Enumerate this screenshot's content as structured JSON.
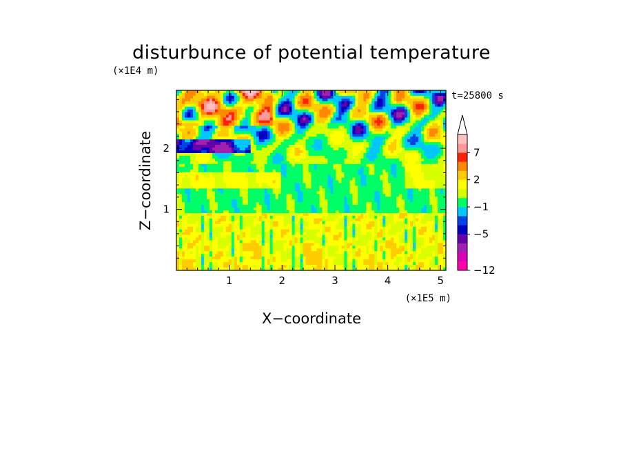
{
  "chart_data": {
    "type": "heatmap",
    "title": "disturbunce of potential temperature",
    "time_label": "t=25800 s",
    "xlabel": "X−coordinate",
    "ylabel": "Z−coordinate",
    "x_unit": "(×1E5 m)",
    "y_unit": "(×1E4 m)",
    "xlim": [
      0,
      5.1
    ],
    "ylim": [
      0,
      2.95
    ],
    "x_ticks": [
      "1",
      "2",
      "3",
      "4",
      "5"
    ],
    "y_ticks": [
      "1",
      "2"
    ],
    "colorbar": {
      "ticks": [
        "7",
        "2",
        "−1",
        "−5",
        "−12"
      ],
      "levels": [
        -12,
        -10,
        -8,
        -6,
        -5,
        -4,
        -3,
        -1,
        0,
        1,
        2,
        4,
        6,
        7,
        9
      ],
      "colors": [
        "#ff00aa",
        "#dd00bb",
        "#a020b0",
        "#6600a8",
        "#0000c0",
        "#0044e8",
        "#00c8ff",
        "#00ff66",
        "#d8ff00",
        "#ffff00",
        "#ffcc00",
        "#ff8800",
        "#ff2200",
        "#ff9999",
        "#ffc0c0"
      ],
      "extend": "max"
    }
  }
}
